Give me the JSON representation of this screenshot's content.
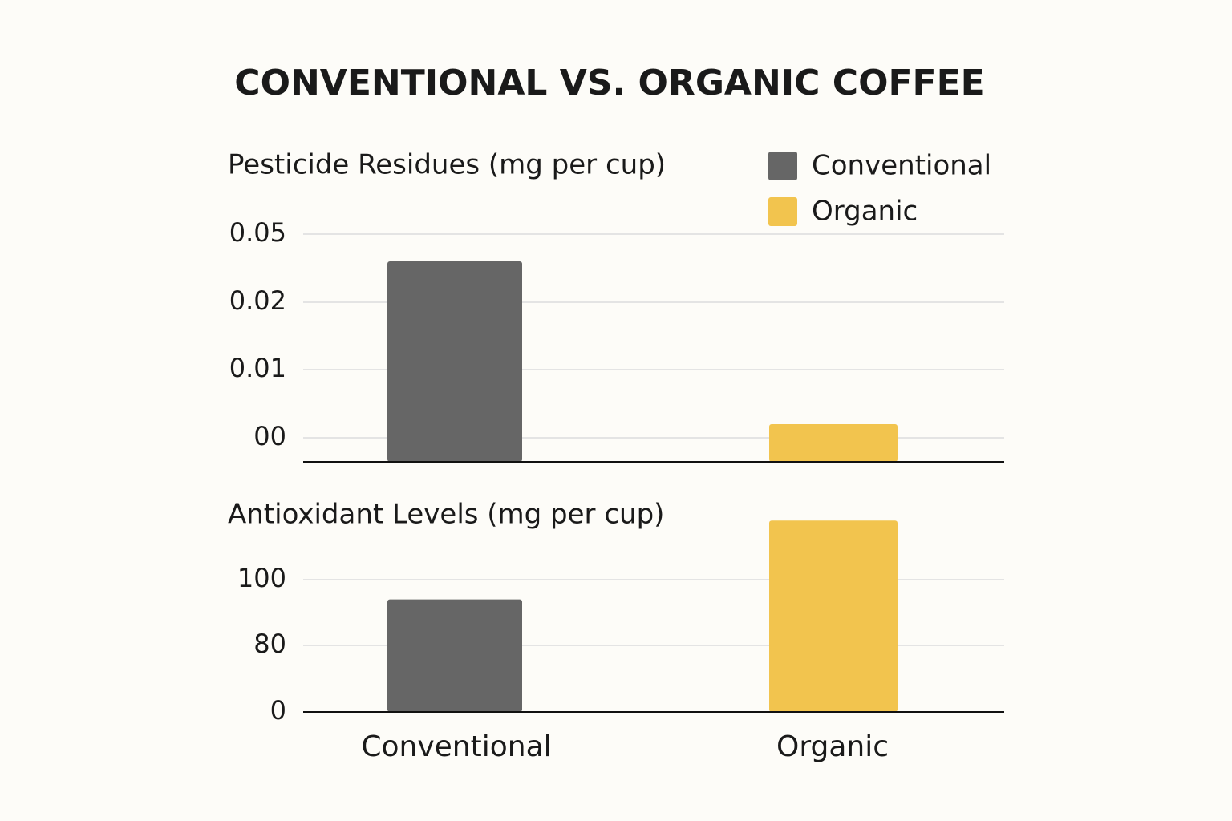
{
  "title": "CONVENTIONAL VS. ORGANIC COFFEE",
  "chart_data": [
    {
      "type": "bar",
      "subtitle": "Pesticide Residues (mg per cup)",
      "categories": [
        "Conventional",
        "Organic"
      ],
      "colors": [
        "#666666",
        "#f2c44e"
      ],
      "values": [
        0.038,
        0.002
      ],
      "ylim": [
        -0.0035,
        0.05
      ],
      "yticks": [
        {
          "value": 0,
          "label": "00"
        },
        0.01,
        0.02,
        0.05
      ],
      "grid": true,
      "legend": "top-right"
    },
    {
      "type": "bar",
      "subtitle": "Antioxidant Levels (mg per cup)",
      "categories": [
        "Conventional",
        "Organic"
      ],
      "colors": [
        "#666666",
        "#f2c44e"
      ],
      "values": [
        94,
        118
      ],
      "ylim": [
        0,
        120
      ],
      "yticks": [
        0,
        80,
        100
      ],
      "grid": true
    }
  ]
}
